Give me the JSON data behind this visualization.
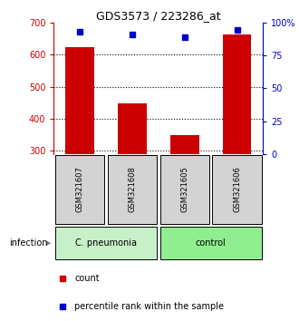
{
  "title": "GDS3573 / 223286_at",
  "samples": [
    "GSM321607",
    "GSM321608",
    "GSM321605",
    "GSM321606"
  ],
  "counts": [
    622,
    447,
    348,
    662
  ],
  "percentiles": [
    93,
    91,
    89,
    94
  ],
  "group_labels": [
    "C. pneumonia",
    "control"
  ],
  "group_colors": [
    "#c8f0c8",
    "#90ee90"
  ],
  "bar_color": "#cc0000",
  "dot_color": "#0000cc",
  "ylim_left": [
    290,
    700
  ],
  "ylim_right": [
    0,
    100
  ],
  "yticks_left": [
    300,
    400,
    500,
    600,
    700
  ],
  "yticks_right": [
    0,
    25,
    50,
    75,
    100
  ],
  "ytick_labels_right": [
    "0",
    "25",
    "50",
    "75",
    "100%"
  ],
  "grid_values": [
    300,
    400,
    500,
    600
  ],
  "left_axis_color": "#cc0000",
  "right_axis_color": "#0000cc",
  "infection_label": "infection",
  "legend_count": "count",
  "legend_pct": "percentile rank within the sample",
  "sample_box_color": "#d3d3d3",
  "bar_width": 0.55,
  "dot_size": 5
}
